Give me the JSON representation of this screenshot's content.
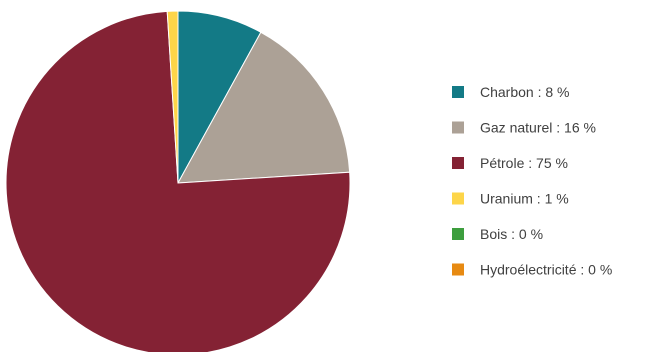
{
  "chart_data": {
    "type": "pie",
    "title": "",
    "slices": [
      {
        "label": "Charbon : 8 %",
        "name": "Charbon",
        "value": 8,
        "color": "#137a86"
      },
      {
        "label": "Gaz naturel : 16 %",
        "name": "Gaz naturel",
        "value": 16,
        "color": "#aca196"
      },
      {
        "label": "Pétrole : 75 %",
        "name": "Pétrole",
        "value": 75,
        "color": "#842234"
      },
      {
        "label": "Uranium : 1 %",
        "name": "Uranium",
        "value": 1,
        "color": "#fdd549"
      },
      {
        "label": "Bois : 0 %",
        "name": "Bois",
        "value": 0,
        "color": "#3d9e3e"
      },
      {
        "label": "Hydroélectricité : 0 %",
        "name": "Hydroélectricité",
        "value": 0,
        "color": "#e78a12"
      }
    ],
    "start_angle_deg": 0,
    "direction": "clockwise",
    "legend": "right"
  }
}
